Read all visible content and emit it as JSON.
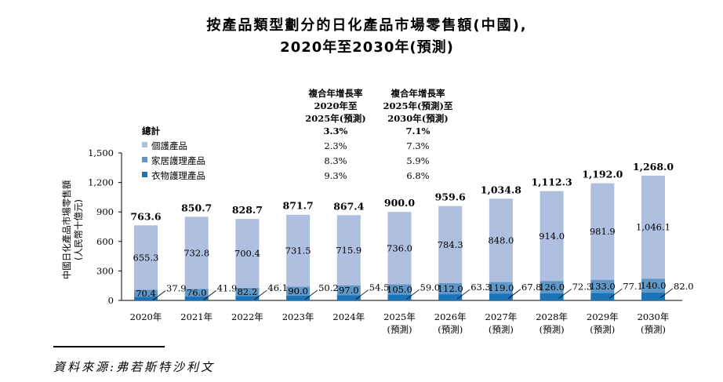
{
  "chart_data": {
    "type": "bar",
    "stacked": true,
    "title_line1": "按產品類型劃分的日化產品市場零售額(中國),",
    "title_line2": "2020年至2030年(預測)",
    "ylabel_line1": "中國日化產品市場零售額",
    "ylabel_line2": "(人民幣十億元)",
    "ylim": [
      0,
      1500
    ],
    "yticks": [
      "0",
      "300",
      "600",
      "900",
      "1,200",
      "1,500"
    ],
    "categories": [
      {
        "year": "2020年",
        "note": ""
      },
      {
        "year": "2021年",
        "note": ""
      },
      {
        "year": "2022年",
        "note": ""
      },
      {
        "year": "2023年",
        "note": ""
      },
      {
        "year": "2024年",
        "note": ""
      },
      {
        "year": "2025年",
        "note": "(預測)"
      },
      {
        "year": "2026年",
        "note": "(預測)"
      },
      {
        "year": "2027年",
        "note": "(預測)"
      },
      {
        "year": "2028年",
        "note": "(預測)"
      },
      {
        "year": "2029年",
        "note": "(預測)"
      },
      {
        "year": "2030年",
        "note": "(預測)"
      }
    ],
    "series": [
      {
        "name": "衣物護理產品",
        "color": "#1a74b8",
        "values": [
          37.9,
          41.9,
          46.1,
          50.2,
          54.5,
          59.0,
          63.3,
          67.8,
          72.3,
          77.1,
          82.0
        ],
        "labels": [
          "37.9",
          "41.9",
          "46.1",
          "50.2",
          "54.5",
          "59.0",
          "63.3",
          "67.8",
          "72.3",
          "77.1",
          "82.0"
        ]
      },
      {
        "name": "家居護理產品",
        "color": "#5f97c6",
        "values": [
          70.4,
          76.0,
          82.2,
          90.0,
          97.0,
          105.0,
          112.0,
          119.0,
          126.0,
          133.0,
          140.0
        ],
        "labels": [
          "70.4",
          "76.0",
          "82.2",
          "90.0",
          "97.0",
          "105.0",
          "112.0",
          "119.0",
          "126.0",
          "133.0",
          "140.0"
        ]
      },
      {
        "name": "個護產品",
        "color": "#aebfe0",
        "values": [
          655.3,
          732.8,
          700.4,
          731.5,
          715.9,
          736.0,
          784.3,
          848.0,
          914.0,
          981.9,
          1046.1
        ],
        "labels": [
          "655.3",
          "732.8",
          "700.4",
          "731.5",
          "715.9",
          "736.0",
          "784.3",
          "848.0",
          "914.0",
          "981.9",
          "1,046.1"
        ]
      }
    ],
    "totals": [
      763.6,
      850.7,
      828.7,
      871.7,
      867.4,
      900.0,
      959.6,
      1034.8,
      1112.3,
      1192.0,
      1268.0
    ],
    "total_labels": [
      "763.6",
      "850.7",
      "828.7",
      "871.7",
      "867.4",
      "900.0",
      "959.6",
      "1,034.8",
      "1,112.3",
      "1,192.0",
      "1,268.0"
    ],
    "cagr_table": {
      "header1": [
        "複合年增長率",
        "2020年至",
        "2025年(預測)"
      ],
      "header2": [
        "複合年增長率",
        "2025年(預測)至",
        "2030年(預測)"
      ],
      "rows": [
        {
          "label": "總計",
          "c1": "3.3%",
          "c2": "7.1%",
          "bold": true,
          "swatch": ""
        },
        {
          "label": "個護產品",
          "c1": "2.3%",
          "c2": "7.3%",
          "bold": false,
          "swatch": "#aebfe0"
        },
        {
          "label": "家居護理產品",
          "c1": "8.3%",
          "c2": "5.9%",
          "bold": false,
          "swatch": "#5f97c6"
        },
        {
          "label": "衣物護理產品",
          "c1": "9.3%",
          "c2": "6.8%",
          "bold": false,
          "swatch": "#1a74b8"
        }
      ]
    }
  },
  "source": "資料來源:弗若斯特沙利文"
}
